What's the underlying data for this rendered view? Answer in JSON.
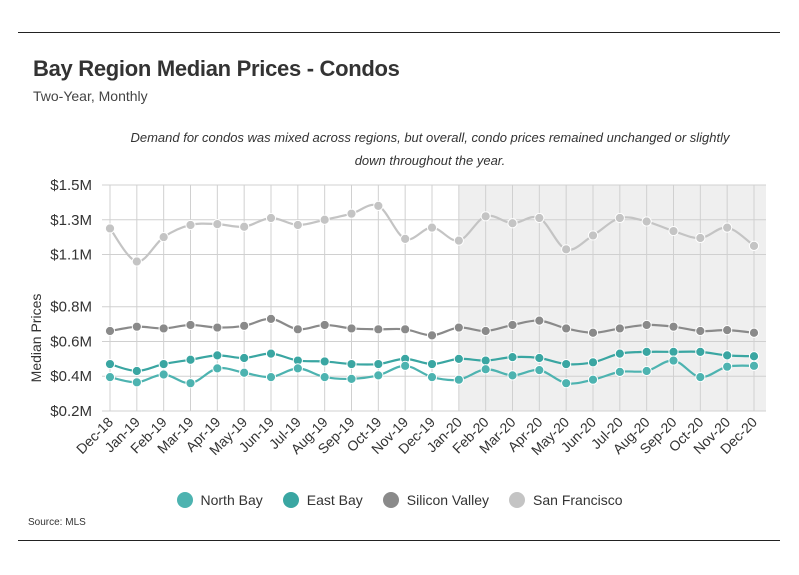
{
  "header": {
    "title": "Bay Region Median Prices - Condos",
    "subtitle": "Two-Year, Monthly",
    "note": "Demand for condos was mixed across regions, but overall, condo prices remained unchanged or slightly down throughout the year."
  },
  "footer": {
    "source": "Source:  MLS"
  },
  "colors": {
    "north_bay": "#4db3b0",
    "east_bay": "#3aa6a2",
    "silicon_valley": "#8a8a8a",
    "san_francisco": "#c4c4c4",
    "shade": "#efefef",
    "grid": "#d0d0d0"
  },
  "chart_data": {
    "type": "line",
    "title": "Bay Region Median Prices - Condos",
    "subtitle": "Two-Year, Monthly",
    "xlabel": "",
    "ylabel": "Median Prices",
    "ylim": [
      0.2,
      1.5
    ],
    "yticks": [
      0.2,
      0.4,
      0.6,
      0.8,
      1.1,
      1.3,
      1.5
    ],
    "ytick_labels": [
      "$0.2M",
      "$0.4M",
      "$0.6M",
      "$0.8M",
      "$1.1M",
      "$1.3M",
      "$1.5M"
    ],
    "grid": true,
    "highlight_range": [
      "Jan-20",
      "Dec-20"
    ],
    "legend_position": "bottom",
    "categories": [
      "Dec-18",
      "Jan-19",
      "Feb-19",
      "Mar-19",
      "Apr-19",
      "May-19",
      "Jun-19",
      "Jul-19",
      "Aug-19",
      "Sep-19",
      "Oct-19",
      "Nov-19",
      "Dec-19",
      "Jan-20",
      "Feb-20",
      "Mar-20",
      "Apr-20",
      "May-20",
      "Jun-20",
      "Jul-20",
      "Aug-20",
      "Sep-20",
      "Oct-20",
      "Nov-20",
      "Dec-20"
    ],
    "series": [
      {
        "name": "North Bay",
        "color_key": "north_bay",
        "values": [
          0.395,
          0.365,
          0.41,
          0.36,
          0.445,
          0.42,
          0.395,
          0.445,
          0.395,
          0.385,
          0.405,
          0.46,
          0.395,
          0.38,
          0.44,
          0.405,
          0.435,
          0.36,
          0.38,
          0.425,
          0.43,
          0.49,
          0.395,
          0.455,
          0.46
        ]
      },
      {
        "name": "East Bay",
        "color_key": "east_bay",
        "values": [
          0.47,
          0.43,
          0.47,
          0.495,
          0.52,
          0.505,
          0.53,
          0.49,
          0.485,
          0.47,
          0.47,
          0.5,
          0.47,
          0.5,
          0.49,
          0.51,
          0.505,
          0.47,
          0.48,
          0.53,
          0.54,
          0.54,
          0.54,
          0.52,
          0.515
        ]
      },
      {
        "name": "Silicon Valley",
        "color_key": "silicon_valley",
        "values": [
          0.66,
          0.685,
          0.675,
          0.695,
          0.68,
          0.69,
          0.73,
          0.67,
          0.695,
          0.675,
          0.67,
          0.67,
          0.635,
          0.68,
          0.66,
          0.695,
          0.72,
          0.675,
          0.65,
          0.675,
          0.695,
          0.685,
          0.66,
          0.665,
          0.65
        ]
      },
      {
        "name": "San Francisco",
        "color_key": "san_francisco",
        "values": [
          1.25,
          1.06,
          1.2,
          1.27,
          1.275,
          1.26,
          1.31,
          1.27,
          1.3,
          1.335,
          1.38,
          1.19,
          1.255,
          1.18,
          1.32,
          1.28,
          1.31,
          1.13,
          1.21,
          1.31,
          1.29,
          1.235,
          1.195,
          1.255,
          1.15
        ]
      }
    ]
  }
}
